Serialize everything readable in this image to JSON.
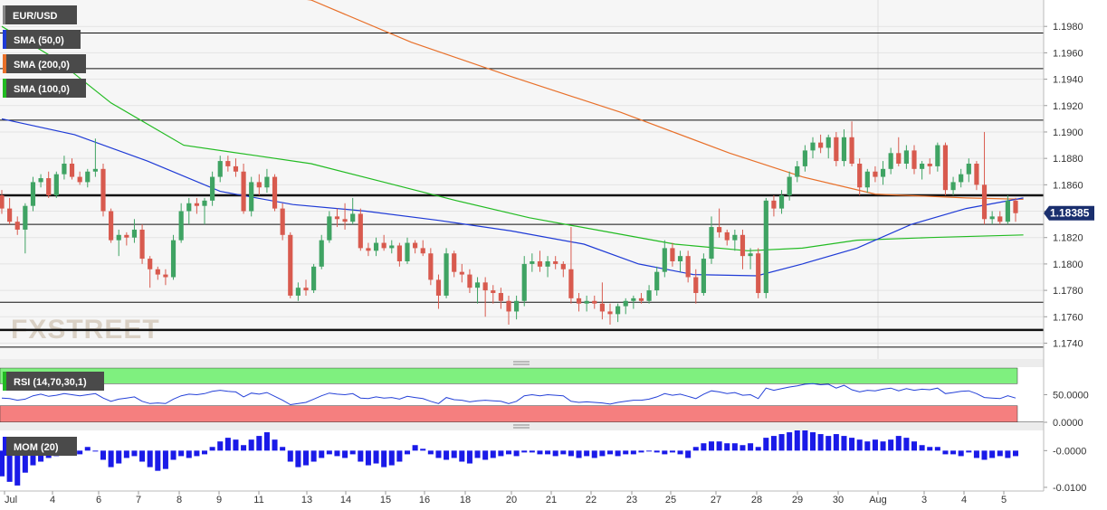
{
  "chart_data": [
    {
      "type": "candlestick",
      "symbol": "EUR/USD",
      "watermark": "FXSTREET",
      "ylim": [
        1.1728,
        1.2
      ],
      "y_ticks": [
        "1.1980",
        "1.1960",
        "1.1940",
        "1.1920",
        "1.1900",
        "1.1880",
        "1.1860",
        "1.1840",
        "1.1820",
        "1.1800",
        "1.1780",
        "1.1760",
        "1.1740"
      ],
      "x_ticks": [
        "Jul",
        "4",
        "6",
        "7",
        "8",
        "9",
        "11",
        "13",
        "14",
        "15",
        "16",
        "18",
        "20",
        "21",
        "22",
        "23",
        "25",
        "27",
        "28",
        "29",
        "30",
        "Aug",
        "3",
        "4",
        "5"
      ],
      "last_price": "1.18385",
      "horizontal_levels": [
        1.1975,
        1.1948,
        1.1909,
        1.1852,
        1.183,
        1.1771,
        1.175,
        1.1737
      ],
      "indicators": [
        {
          "name": "SMA (50,0)",
          "color": "#1e3ad6"
        },
        {
          "name": "SMA (200,0)",
          "color": "#e8702a"
        },
        {
          "name": "SMA (100,0)",
          "color": "#22bb22"
        }
      ],
      "sma200": [
        [
          0,
          1.203
        ],
        [
          340,
          1.2
        ],
        [
          450,
          1.1968
        ],
        [
          560,
          1.1942
        ],
        [
          680,
          1.1915
        ],
        [
          800,
          1.1884
        ],
        [
          880,
          1.1866
        ],
        [
          960,
          1.1853
        ],
        [
          1060,
          1.185
        ],
        [
          1123,
          1.1849
        ]
      ],
      "sma50": [
        [
          0,
          1.191
        ],
        [
          80,
          1.1898
        ],
        [
          160,
          1.1878
        ],
        [
          240,
          1.1855
        ],
        [
          320,
          1.1845
        ],
        [
          400,
          1.184
        ],
        [
          480,
          1.1833
        ],
        [
          560,
          1.1825
        ],
        [
          640,
          1.1815
        ],
        [
          700,
          1.18
        ],
        [
          760,
          1.1792
        ],
        [
          830,
          1.1791
        ],
        [
          880,
          1.18
        ],
        [
          940,
          1.1812
        ],
        [
          1000,
          1.183
        ],
        [
          1060,
          1.1842
        ],
        [
          1123,
          1.185
        ]
      ],
      "sma100": [
        [
          0,
          1.198
        ],
        [
          60,
          1.1955
        ],
        [
          120,
          1.1922
        ],
        [
          200,
          1.189
        ],
        [
          280,
          1.1882
        ],
        [
          340,
          1.1876
        ],
        [
          420,
          1.1862
        ],
        [
          500,
          1.1848
        ],
        [
          580,
          1.1835
        ],
        [
          660,
          1.1825
        ],
        [
          740,
          1.1815
        ],
        [
          820,
          1.181
        ],
        [
          880,
          1.1812
        ],
        [
          940,
          1.1818
        ],
        [
          1020,
          1.182
        ],
        [
          1123,
          1.1822
        ]
      ],
      "candles": [
        [
          1.1852,
          1.1856,
          1.1838,
          1.1842
        ],
        [
          1.1842,
          1.185,
          1.183,
          1.1832
        ],
        [
          1.1832,
          1.1836,
          1.1822,
          1.1826
        ],
        [
          1.1826,
          1.1846,
          1.1808,
          1.1844
        ],
        [
          1.1844,
          1.1866,
          1.184,
          1.1862
        ],
        [
          1.1862,
          1.1868,
          1.1858,
          1.1865
        ],
        [
          1.1865,
          1.187,
          1.185,
          1.1852
        ],
        [
          1.1852,
          1.187,
          1.185,
          1.1868
        ],
        [
          1.1868,
          1.1882,
          1.1864,
          1.1876
        ],
        [
          1.1876,
          1.188,
          1.1864,
          1.1866
        ],
        [
          1.1866,
          1.187,
          1.186,
          1.1862
        ],
        [
          1.1862,
          1.1872,
          1.1858,
          1.187
        ],
        [
          1.187,
          1.1895,
          1.1866,
          1.1872
        ],
        [
          1.1872,
          1.1876,
          1.1836,
          1.184
        ],
        [
          1.184,
          1.1842,
          1.1816,
          1.1818
        ],
        [
          1.1818,
          1.1826,
          1.1806,
          1.1822
        ],
        [
          1.1822,
          1.1824,
          1.1814,
          1.182
        ],
        [
          1.182,
          1.1834,
          1.1816,
          1.1826
        ],
        [
          1.1826,
          1.183,
          1.18,
          1.1804
        ],
        [
          1.1804,
          1.1806,
          1.1782,
          1.1796
        ],
        [
          1.1796,
          1.1798,
          1.1788,
          1.1792
        ],
        [
          1.1792,
          1.1796,
          1.1784,
          1.179
        ],
        [
          1.179,
          1.1822,
          1.1788,
          1.1818
        ],
        [
          1.1818,
          1.1846,
          1.1816,
          1.184
        ],
        [
          1.184,
          1.185,
          1.183,
          1.1846
        ],
        [
          1.1846,
          1.185,
          1.1838,
          1.1844
        ],
        [
          1.1844,
          1.185,
          1.183,
          1.1848
        ],
        [
          1.1848,
          1.187,
          1.1844,
          1.1866
        ],
        [
          1.1866,
          1.1882,
          1.1862,
          1.1878
        ],
        [
          1.1878,
          1.1882,
          1.187,
          1.1874
        ],
        [
          1.1874,
          1.188,
          1.1866,
          1.187
        ],
        [
          1.187,
          1.1876,
          1.1838,
          1.184
        ],
        [
          1.184,
          1.1866,
          1.1836,
          1.1862
        ],
        [
          1.1862,
          1.1868,
          1.1852,
          1.1858
        ],
        [
          1.1858,
          1.1872,
          1.1854,
          1.1866
        ],
        [
          1.1866,
          1.1868,
          1.184,
          1.1842
        ],
        [
          1.1842,
          1.1846,
          1.1818,
          1.1822
        ],
        [
          1.1822,
          1.1824,
          1.1774,
          1.1776
        ],
        [
          1.1776,
          1.1786,
          1.1772,
          1.1782
        ],
        [
          1.1782,
          1.1788,
          1.1776,
          1.178
        ],
        [
          1.178,
          1.18,
          1.1778,
          1.1798
        ],
        [
          1.1798,
          1.1822,
          1.1796,
          1.1818
        ],
        [
          1.1818,
          1.184,
          1.1816,
          1.1836
        ],
        [
          1.1836,
          1.1842,
          1.1828,
          1.1834
        ],
        [
          1.1834,
          1.1846,
          1.1826,
          1.1832
        ],
        [
          1.1832,
          1.185,
          1.183,
          1.1838
        ],
        [
          1.1838,
          1.1842,
          1.181,
          1.1812
        ],
        [
          1.1812,
          1.1816,
          1.1806,
          1.181
        ],
        [
          1.181,
          1.182,
          1.1806,
          1.1816
        ],
        [
          1.1816,
          1.1822,
          1.181,
          1.1812
        ],
        [
          1.1812,
          1.1818,
          1.1808,
          1.1814
        ],
        [
          1.1814,
          1.1816,
          1.1798,
          1.1802
        ],
        [
          1.1802,
          1.182,
          1.18,
          1.1816
        ],
        [
          1.1816,
          1.1818,
          1.1808,
          1.1812
        ],
        [
          1.1812,
          1.1818,
          1.1806,
          1.1808
        ],
        [
          1.1808,
          1.1812,
          1.1784,
          1.1788
        ],
        [
          1.1788,
          1.1792,
          1.1766,
          1.1776
        ],
        [
          1.1776,
          1.1812,
          1.1774,
          1.1808
        ],
        [
          1.1808,
          1.181,
          1.179,
          1.1794
        ],
        [
          1.1794,
          1.18,
          1.1786,
          1.1792
        ],
        [
          1.1792,
          1.1796,
          1.1778,
          1.1782
        ],
        [
          1.1782,
          1.179,
          1.177,
          1.1786
        ],
        [
          1.1786,
          1.179,
          1.176,
          1.178
        ],
        [
          1.178,
          1.1784,
          1.177,
          1.1778
        ],
        [
          1.1778,
          1.1782,
          1.1766,
          1.1772
        ],
        [
          1.1772,
          1.1776,
          1.1754,
          1.1764
        ],
        [
          1.1764,
          1.1776,
          1.1758,
          1.1772
        ],
        [
          1.1772,
          1.1806,
          1.1768,
          1.18
        ],
        [
          1.18,
          1.1808,
          1.1794,
          1.1802
        ],
        [
          1.1802,
          1.181,
          1.1794,
          1.1798
        ],
        [
          1.1798,
          1.1806,
          1.179,
          1.1802
        ],
        [
          1.1802,
          1.1806,
          1.1796,
          1.18
        ],
        [
          1.18,
          1.1802,
          1.179,
          1.1796
        ],
        [
          1.1796,
          1.1828,
          1.177,
          1.1774
        ],
        [
          1.1774,
          1.1778,
          1.1764,
          1.177
        ],
        [
          1.177,
          1.1776,
          1.1764,
          1.1772
        ],
        [
          1.1772,
          1.1776,
          1.1766,
          1.177
        ],
        [
          1.177,
          1.1786,
          1.1758,
          1.1764
        ],
        [
          1.1764,
          1.177,
          1.1754,
          1.1762
        ],
        [
          1.1762,
          1.177,
          1.1756,
          1.1768
        ],
        [
          1.1768,
          1.1774,
          1.1762,
          1.1772
        ],
        [
          1.1772,
          1.1776,
          1.1766,
          1.1774
        ],
        [
          1.1774,
          1.1778,
          1.177,
          1.1772
        ],
        [
          1.1772,
          1.1784,
          1.177,
          1.178
        ],
        [
          1.178,
          1.1798,
          1.1776,
          1.1794
        ],
        [
          1.1794,
          1.1818,
          1.179,
          1.1812
        ],
        [
          1.1812,
          1.1816,
          1.1798,
          1.1802
        ],
        [
          1.1802,
          1.181,
          1.1794,
          1.1806
        ],
        [
          1.1806,
          1.181,
          1.1786,
          1.179
        ],
        [
          1.179,
          1.1796,
          1.177,
          1.1778
        ],
        [
          1.1778,
          1.1808,
          1.1776,
          1.1804
        ],
        [
          1.1804,
          1.1836,
          1.18,
          1.1828
        ],
        [
          1.1828,
          1.1842,
          1.182,
          1.1824
        ],
        [
          1.1824,
          1.1826,
          1.1814,
          1.1818
        ],
        [
          1.1818,
          1.1826,
          1.181,
          1.1822
        ],
        [
          1.1822,
          1.1826,
          1.1796,
          1.1806
        ],
        [
          1.1806,
          1.1812,
          1.1796,
          1.1808
        ],
        [
          1.1808,
          1.1812,
          1.1774,
          1.1778
        ],
        [
          1.1778,
          1.185,
          1.1774,
          1.1848
        ],
        [
          1.1848,
          1.1852,
          1.1836,
          1.1842
        ],
        [
          1.1842,
          1.1856,
          1.1838,
          1.1852
        ],
        [
          1.1852,
          1.187,
          1.1848,
          1.1866
        ],
        [
          1.1866,
          1.1878,
          1.1862,
          1.1874
        ],
        [
          1.1874,
          1.189,
          1.187,
          1.1886
        ],
        [
          1.1886,
          1.1896,
          1.188,
          1.1892
        ],
        [
          1.1892,
          1.1898,
          1.1884,
          1.1888
        ],
        [
          1.1888,
          1.1898,
          1.188,
          1.1896
        ],
        [
          1.1896,
          1.19,
          1.1874,
          1.1878
        ],
        [
          1.1878,
          1.1902,
          1.1874,
          1.1896
        ],
        [
          1.1896,
          1.1908,
          1.1874,
          1.1876
        ],
        [
          1.1876,
          1.188,
          1.1852,
          1.1858
        ],
        [
          1.1858,
          1.1872,
          1.1854,
          1.187
        ],
        [
          1.187,
          1.1874,
          1.1862,
          1.1866
        ],
        [
          1.1866,
          1.1878,
          1.186,
          1.1872
        ],
        [
          1.1872,
          1.1888,
          1.1868,
          1.1884
        ],
        [
          1.1884,
          1.1896,
          1.1874,
          1.1876
        ],
        [
          1.1876,
          1.189,
          1.1872,
          1.1886
        ],
        [
          1.1886,
          1.189,
          1.1868,
          1.1872
        ],
        [
          1.1872,
          1.1878,
          1.1864,
          1.1876
        ],
        [
          1.1876,
          1.188,
          1.1868,
          1.1874
        ],
        [
          1.1874,
          1.1892,
          1.187,
          1.189
        ],
        [
          1.189,
          1.1892,
          1.1852,
          1.1856
        ],
        [
          1.1856,
          1.1866,
          1.1852,
          1.1862
        ],
        [
          1.1862,
          1.1872,
          1.1858,
          1.1868
        ],
        [
          1.1868,
          1.188,
          1.1862,
          1.1876
        ],
        [
          1.1876,
          1.1878,
          1.1856,
          1.186
        ],
        [
          1.186,
          1.19,
          1.183,
          1.1834
        ],
        [
          1.1834,
          1.184,
          1.183,
          1.1836
        ],
        [
          1.1836,
          1.184,
          1.183,
          1.1832
        ],
        [
          1.1832,
          1.1852,
          1.183,
          1.1848
        ],
        [
          1.1848,
          1.185,
          1.1832,
          1.18385
        ]
      ]
    },
    {
      "type": "line",
      "indicator": "RSI (14,70,30,1)",
      "ylim": [
        0,
        100
      ],
      "overbought": 70,
      "oversold": 30,
      "y_ticks": [
        "50.0000",
        "0.0000"
      ],
      "values": [
        44,
        43,
        40,
        42,
        48,
        51,
        47,
        49,
        52,
        50,
        48,
        50,
        52,
        44,
        38,
        42,
        44,
        46,
        38,
        34,
        35,
        34,
        42,
        48,
        51,
        50,
        52,
        56,
        58,
        56,
        55,
        46,
        53,
        51,
        54,
        47,
        40,
        32,
        34,
        36,
        42,
        48,
        53,
        51,
        50,
        52,
        44,
        43,
        46,
        44,
        45,
        42,
        47,
        45,
        43,
        38,
        34,
        45,
        41,
        40,
        37,
        39,
        40,
        39,
        38,
        34,
        38,
        48,
        50,
        48,
        50,
        49,
        48,
        38,
        36,
        37,
        36,
        35,
        33,
        36,
        38,
        40,
        40,
        42,
        46,
        52,
        49,
        51,
        47,
        43,
        51,
        57,
        55,
        52,
        54,
        49,
        50,
        43,
        62,
        58,
        61,
        64,
        66,
        69,
        70,
        68,
        69,
        62,
        67,
        59,
        55,
        58,
        57,
        60,
        62,
        57,
        61,
        58,
        60,
        59,
        62,
        52,
        54,
        56,
        57,
        52,
        45,
        44,
        43,
        48,
        44
      ]
    },
    {
      "type": "bar",
      "indicator": "MOM (20)",
      "ylim": [
        -0.011,
        0.0055
      ],
      "y_ticks": [
        "-0.0000",
        "-0.0100"
      ],
      "values": [
        -0.007,
        -0.0085,
        -0.0095,
        -0.006,
        -0.004,
        -0.003,
        -0.002,
        -0.0015,
        -0.0005,
        0.0005,
        -0.001,
        0.001,
        0.0,
        -0.0025,
        -0.0045,
        -0.0035,
        -0.002,
        -0.0015,
        -0.003,
        -0.0045,
        -0.0055,
        -0.005,
        -0.0025,
        -0.0015,
        -0.002,
        -0.0015,
        -0.001,
        0.001,
        0.0025,
        0.0035,
        0.003,
        0.0015,
        0.003,
        0.004,
        0.005,
        0.003,
        0.001,
        -0.003,
        -0.0045,
        -0.004,
        -0.003,
        -0.002,
        -0.001,
        -0.0015,
        -0.002,
        -0.001,
        -0.003,
        -0.004,
        -0.0035,
        -0.0045,
        -0.004,
        -0.003,
        -0.001,
        0.0015,
        0.0005,
        -0.001,
        -0.002,
        -0.0025,
        -0.002,
        -0.003,
        -0.0035,
        -0.002,
        -0.0025,
        -0.002,
        -0.0015,
        -0.001,
        -0.0015,
        -0.0005,
        -0.0005,
        -0.001,
        -0.001,
        -0.0015,
        -0.001,
        -0.0015,
        -0.002,
        -0.0015,
        -0.002,
        -0.0015,
        -0.001,
        -0.0015,
        -0.001,
        -0.001,
        -0.0005,
        0.0,
        -0.0005,
        -0.001,
        -0.0005,
        -0.001,
        -0.002,
        0.001,
        0.002,
        0.0025,
        0.0025,
        0.002,
        0.002,
        0.0015,
        0.002,
        0.001,
        0.0035,
        0.004,
        0.0045,
        0.005,
        0.0055,
        0.0055,
        0.005,
        0.0045,
        0.004,
        0.0045,
        0.004,
        0.0035,
        0.003,
        0.0025,
        0.003,
        0.0025,
        0.003,
        0.004,
        0.0035,
        0.0025,
        0.0015,
        0.001,
        0.001,
        -0.001,
        -0.001,
        -0.0015,
        -0.0005,
        -0.002,
        -0.0025,
        -0.002,
        -0.0015,
        -0.002,
        -0.0015
      ]
    }
  ],
  "colors": {
    "up_candle": "#3fa363",
    "down_candle": "#d85a4e",
    "rsi_line": "#2541d8",
    "rsi_overbought": "#7ff07f",
    "rsi_oversold": "#f57f7f",
    "mom_bar": "#1a1ae8",
    "price_tag": "#1a2f6e"
  }
}
